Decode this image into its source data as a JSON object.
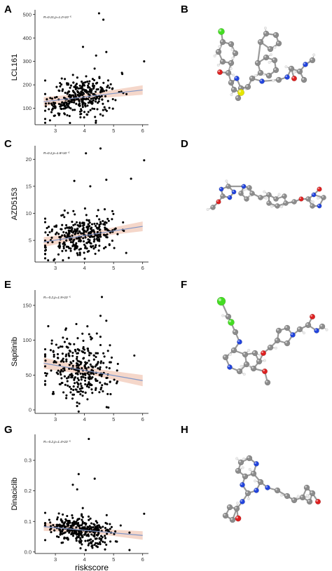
{
  "panels": [
    {
      "letter": "A",
      "id": "lcl161"
    },
    {
      "letter": "B",
      "id": "mol-b"
    },
    {
      "letter": "C",
      "id": "azd5153"
    },
    {
      "letter": "D",
      "id": "mol-d"
    },
    {
      "letter": "E",
      "id": "sapitinib"
    },
    {
      "letter": "F",
      "id": "mol-f"
    },
    {
      "letter": "G",
      "id": "dinaciclib"
    },
    {
      "letter": "H",
      "id": "mol-h"
    }
  ],
  "colors": {
    "point": "#000000",
    "trend_line": "#7f96c8",
    "confidence_band": "#f2c9b8",
    "carbon": "#8c8c8c",
    "nitrogen": "#2244dd",
    "oxygen": "#dd2020",
    "sulfur": "#e6e600",
    "chlorine": "#44dd22",
    "hydrogen": "#ededed"
  },
  "chart_data": [
    {
      "type": "scatter",
      "panel": "A",
      "ylabel": "LCL161",
      "xlabel": "",
      "annotation": "R=0.21,p=1.2×10⁻⁵",
      "xlim": [
        2.3,
        6.2
      ],
      "ylim": [
        30,
        520
      ],
      "xticks": [
        3,
        4,
        5,
        6
      ],
      "yticks": [
        100,
        200,
        300,
        400,
        500
      ],
      "trend": {
        "x0": 2.6,
        "y0": 128,
        "x1": 6.0,
        "y1": 178,
        "band": [
          12,
          20
        ]
      },
      "seed": 11,
      "n": 330,
      "noise_sd": 42,
      "outliers": [
        [
          4.5,
          505
        ],
        [
          4.65,
          478
        ],
        [
          3.95,
          362
        ],
        [
          4.75,
          340
        ],
        [
          6.05,
          300
        ],
        [
          4.4,
          325
        ]
      ]
    },
    {
      "type": "scatter",
      "panel": "C",
      "ylabel": "AZD5153",
      "xlabel": "",
      "annotation": "R=0.2,p=1.8×10⁻⁵",
      "xlim": [
        2.3,
        6.2
      ],
      "ylim": [
        1,
        22.5
      ],
      "xticks": [
        3,
        4,
        5,
        6
      ],
      "yticks": [
        5,
        10,
        15,
        20
      ],
      "trend": {
        "x0": 2.6,
        "y0": 4.7,
        "x1": 6.0,
        "y1": 7.6,
        "band": [
          0.5,
          0.9
        ]
      },
      "seed": 23,
      "n": 330,
      "noise_sd": 1.9,
      "outliers": [
        [
          4.55,
          22.0
        ],
        [
          4.05,
          21.1
        ],
        [
          6.05,
          19.8
        ],
        [
          3.65,
          16.0
        ],
        [
          4.75,
          16.2
        ],
        [
          5.6,
          16.4
        ],
        [
          4.2,
          15.0
        ]
      ]
    },
    {
      "type": "scatter",
      "panel": "E",
      "ylabel": "Sapitinib",
      "xlabel": "",
      "annotation": "R=-0.2,p=1.9×10⁻⁵",
      "xlim": [
        2.3,
        6.2
      ],
      "ylim": [
        -5,
        172
      ],
      "xticks": [
        3,
        4,
        5,
        6
      ],
      "yticks": [
        0,
        50,
        100,
        150
      ],
      "trend": {
        "x0": 2.6,
        "y0": 67,
        "x1": 6.0,
        "y1": 42,
        "band": [
          5,
          8
        ]
      },
      "seed": 37,
      "n": 330,
      "noise_sd": 24,
      "outliers": [
        [
          4.6,
          162
        ],
        [
          4.55,
          135
        ],
        [
          4.75,
          128
        ],
        [
          4.1,
          120
        ],
        [
          3.35,
          115
        ]
      ]
    },
    {
      "type": "scatter",
      "panel": "G",
      "ylabel": "Dinaciclib",
      "xlabel": "riskscore",
      "annotation": "R=-0.2,p=1.4×10⁻⁵",
      "xlim": [
        2.3,
        6.2
      ],
      "ylim": [
        -0.005,
        0.385
      ],
      "xticks": [
        3,
        4,
        5,
        6
      ],
      "yticks": [
        0.0,
        0.1,
        0.2,
        0.3
      ],
      "trend": {
        "x0": 2.6,
        "y0": 0.083,
        "x1": 6.0,
        "y1": 0.054,
        "band": [
          0.008,
          0.014
        ]
      },
      "seed": 53,
      "n": 330,
      "noise_sd": 0.026,
      "outliers": [
        [
          4.15,
          0.37
        ],
        [
          3.8,
          0.255
        ],
        [
          4.35,
          0.24
        ],
        [
          3.6,
          0.22
        ],
        [
          3.75,
          0.205
        ],
        [
          6.05,
          0.125
        ]
      ]
    }
  ]
}
